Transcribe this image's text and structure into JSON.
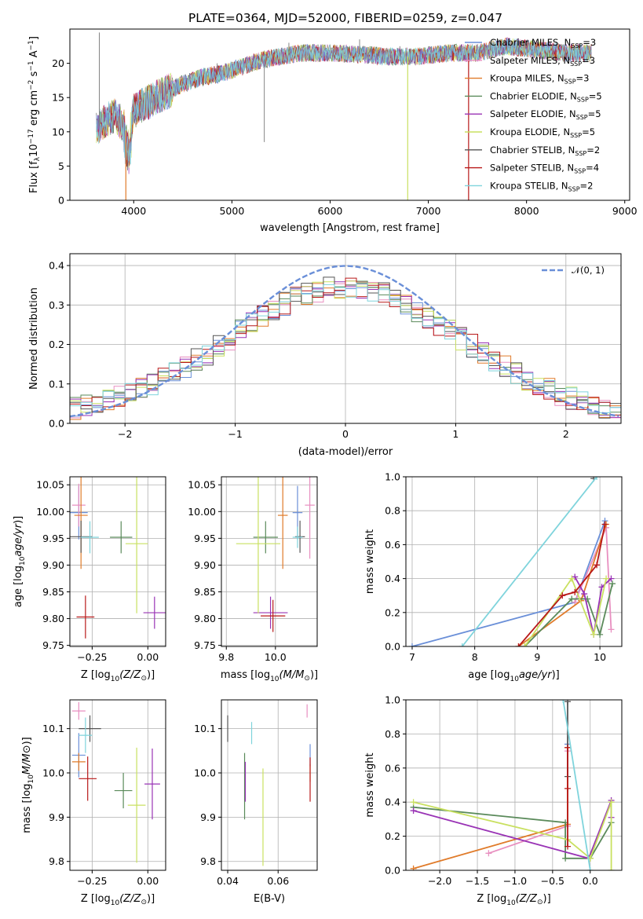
{
  "figure_title": "PLATE=0364, MJD=52000, FIBERID=0259, z=0.047",
  "series_colors": [
    "#6a8fd8",
    "#e88fc0",
    "#e07b2a",
    "#5a8a5a",
    "#9933b5",
    "#c9e060",
    "#555555",
    "#b81818",
    "#7fd4dc"
  ],
  "legend_notation": {
    "main_text_pre": "N",
    "subscript": "SSP"
  },
  "legend_entries": [
    {
      "label": "Chabrier MILES, N",
      "n": "=3",
      "color": "#6a8fd8"
    },
    {
      "label": "Salpeter MILES, N",
      "n": "=3",
      "color": "#e88fc0"
    },
    {
      "label": "Kroupa MILES, N",
      "n": "=3",
      "color": "#e07b2a"
    },
    {
      "label": "Chabrier ELODIE, N",
      "n": "=5",
      "color": "#5a8a5a"
    },
    {
      "label": "Salpeter ELODIE, N",
      "n": "=5",
      "color": "#9933b5"
    },
    {
      "label": "Kroupa ELODIE, N",
      "n": "=5",
      "color": "#c9e060"
    },
    {
      "label": "Chabrier STELIB, N",
      "n": "=2",
      "color": "#555555"
    },
    {
      "label": "Salpeter STELIB, N",
      "n": "=4",
      "color": "#b81818"
    },
    {
      "label": "Kroupa STELIB, N",
      "n": "=2",
      "color": "#7fd4dc"
    }
  ],
  "gauss_legend": "𝒩(0, 1)",
  "chart_data": [
    {
      "id": "spectrum",
      "type": "line",
      "xlabel": "wavelength [Angstrom, rest frame]",
      "ylabel_parts": [
        "Flux [f",
        "λ",
        "10",
        "−17",
        " erg cm",
        "−2",
        " s",
        "−1",
        " A",
        "−1",
        "]"
      ],
      "xlim": [
        3350,
        9050
      ],
      "ylim": [
        0,
        25
      ],
      "xticks": [
        4000,
        5000,
        6000,
        7000,
        8000,
        9000
      ],
      "yticks": [
        0,
        5,
        10,
        15,
        20
      ],
      "continuum": [
        [
          3620,
          10.5
        ],
        [
          3700,
          11.5
        ],
        [
          3800,
          12.5
        ],
        [
          3900,
          11
        ],
        [
          3950,
          9
        ],
        [
          4000,
          13
        ],
        [
          4100,
          14
        ],
        [
          4300,
          15.5
        ],
        [
          4500,
          17
        ],
        [
          4700,
          18
        ],
        [
          4900,
          18.5
        ],
        [
          5100,
          19.5
        ],
        [
          5300,
          20.5
        ],
        [
          5500,
          21
        ],
        [
          5700,
          21.5
        ],
        [
          6000,
          21.5
        ],
        [
          6300,
          21.3
        ],
        [
          6600,
          21
        ],
        [
          6900,
          21
        ],
        [
          7200,
          21.5
        ],
        [
          7500,
          21.5
        ],
        [
          7800,
          22.5
        ],
        [
          8100,
          22
        ],
        [
          8400,
          21.5
        ],
        [
          8650,
          21.5
        ]
      ],
      "spikes": [
        [
          3650,
          24.5
        ],
        [
          4850,
          20
        ],
        [
          5330,
          8.5
        ],
        [
          5580,
          23
        ],
        [
          6300,
          23.5
        ],
        [
          6710,
          22.5
        ],
        [
          7630,
          23
        ],
        [
          7920,
          21
        ],
        [
          8390,
          20.5
        ]
      ],
      "dips": [
        [
          3920,
          0,
          "#e07b2a"
        ],
        [
          6790,
          0,
          "#c9e060"
        ],
        [
          7410,
          0,
          "#b81818"
        ]
      ]
    },
    {
      "id": "residuals",
      "type": "line",
      "xlabel": "(data-model)/error",
      "ylabel": "Normed distribution",
      "xlim": [
        -2.5,
        2.5
      ],
      "ylim": [
        0,
        0.43
      ],
      "xticks": [
        -2,
        -1,
        0,
        1,
        2
      ],
      "yticks": [
        0.0,
        0.1,
        0.2,
        0.3,
        0.4
      ],
      "xtick_labels": [
        "−2",
        "−1",
        "0",
        "1",
        "2"
      ],
      "ytick_labels": [
        "0.0",
        "0.1",
        "0.2",
        "0.3",
        "0.4"
      ]
    },
    {
      "id": "age_vs_Z",
      "type": "scatter",
      "xlabel_pre": "Z [log",
      "xlabel_post": "(Z/Z",
      "ylabel": "age  [log",
      "xlim": [
        -0.35,
        0.08
      ],
      "ylim": [
        9.748,
        10.065
      ],
      "xticks": [
        -0.25,
        0.0
      ],
      "yticks": [
        9.75,
        9.8,
        9.85,
        9.9,
        9.95,
        10.0,
        10.05
      ],
      "xtick_labels": [
        "−0.25",
        "0.00"
      ],
      "ytick_labels": [
        "9.75",
        "9.80",
        "9.85",
        "9.90",
        "9.95",
        "10.00",
        "10.05"
      ],
      "points": [
        {
          "x": -0.31,
          "y": 9.998,
          "xe": 0.04,
          "ye": 0.05,
          "c": "#6a8fd8"
        },
        {
          "x": -0.31,
          "y": 10.012,
          "xe": 0.03,
          "ye": 0.04,
          "c": "#e88fc0"
        },
        {
          "x": -0.3,
          "y": 9.993,
          "xe": 0.03,
          "ye": 0.1,
          "c": "#e07b2a"
        },
        {
          "x": -0.12,
          "y": 9.952,
          "xe": 0.05,
          "ye": 0.03,
          "c": "#5a8a5a"
        },
        {
          "x": 0.03,
          "y": 9.811,
          "xe": 0.05,
          "ye": 0.03,
          "c": "#9933b5"
        },
        {
          "x": -0.05,
          "y": 9.94,
          "xe": 0.05,
          "ye": 0.13,
          "c": "#c9e060"
        },
        {
          "x": -0.3,
          "y": 9.953,
          "xe": 0.05,
          "ye": 0.03,
          "c": "#555555"
        },
        {
          "x": -0.28,
          "y": 9.803,
          "xe": 0.04,
          "ye": 0.04,
          "c": "#b81818"
        },
        {
          "x": -0.26,
          "y": 9.952,
          "xe": 0.04,
          "ye": 0.03,
          "c": "#7fd4dc"
        }
      ]
    },
    {
      "id": "age_vs_mass",
      "type": "scatter",
      "xlabel_pre": "mass [log",
      "xlabel_post": "(M/M",
      "ylabel": "",
      "xlim": [
        9.78,
        10.17
      ],
      "ylim": [
        9.748,
        10.065
      ],
      "xticks": [
        9.8,
        10.0
      ],
      "yticks": [
        9.75,
        9.8,
        9.85,
        9.9,
        9.95,
        10.0,
        10.05
      ],
      "xtick_labels": [
        "9.8",
        "10.0"
      ],
      "ytick_labels": [
        "9.75",
        "9.80",
        "9.85",
        "9.90",
        "9.95",
        "10.00",
        "10.05"
      ],
      "points": [
        {
          "x": 10.09,
          "y": 9.998,
          "xe": 0.02,
          "ye": 0.05,
          "c": "#6a8fd8"
        },
        {
          "x": 10.14,
          "y": 10.012,
          "xe": 0.02,
          "ye": 0.1,
          "c": "#e88fc0"
        },
        {
          "x": 10.03,
          "y": 9.993,
          "xe": 0.02,
          "ye": 0.1,
          "c": "#e07b2a"
        },
        {
          "x": 9.96,
          "y": 9.952,
          "xe": 0.05,
          "ye": 0.03,
          "c": "#5a8a5a"
        },
        {
          "x": 9.98,
          "y": 9.811,
          "xe": 0.07,
          "ye": 0.03,
          "c": "#9933b5"
        },
        {
          "x": 9.93,
          "y": 9.94,
          "xe": 0.09,
          "ye": 0.13,
          "c": "#c9e060"
        },
        {
          "x": 10.1,
          "y": 9.953,
          "xe": 0.02,
          "ye": 0.03,
          "c": "#555555"
        },
        {
          "x": 9.99,
          "y": 9.805,
          "xe": 0.05,
          "ye": 0.03,
          "c": "#b81818"
        },
        {
          "x": 10.09,
          "y": 9.952,
          "xe": 0.02,
          "ye": 0.02,
          "c": "#7fd4dc"
        }
      ]
    },
    {
      "id": "mass_weight_vs_age",
      "type": "line",
      "xlabel": "age  [log",
      "ylabel": "mass weight",
      "xlim": [
        6.9,
        10.35
      ],
      "ylim": [
        0,
        1.0
      ],
      "xticks": [
        7,
        8,
        9,
        10
      ],
      "yticks": [
        0.0,
        0.2,
        0.4,
        0.6,
        0.8,
        1.0
      ],
      "xtick_labels": [
        "7",
        "8",
        "9",
        "10"
      ],
      "ytick_labels": [
        "0.0",
        "0.2",
        "0.4",
        "0.6",
        "0.8",
        "1.0"
      ],
      "series": [
        {
          "c": "#6a8fd8",
          "pts": [
            [
              7.0,
              0.0
            ],
            [
              9.6,
              0.26
            ],
            [
              10.08,
              0.74
            ]
          ]
        },
        {
          "c": "#e88fc0",
          "pts": [
            [
              9.6,
              0.26
            ],
            [
              10.1,
              0.7
            ],
            [
              10.18,
              0.1
            ]
          ]
        },
        {
          "c": "#e07b2a",
          "pts": [
            [
              8.7,
              0.0
            ],
            [
              9.7,
              0.27
            ],
            [
              10.1,
              0.72
            ]
          ]
        },
        {
          "c": "#5a8a5a",
          "pts": [
            [
              8.8,
              0.0
            ],
            [
              9.55,
              0.28
            ],
            [
              9.8,
              0.28
            ],
            [
              10.0,
              0.07
            ],
            [
              10.2,
              0.37
            ]
          ]
        },
        {
          "c": "#9933b5",
          "pts": [
            [
              9.6,
              0.41
            ],
            [
              9.75,
              0.31
            ],
            [
              9.9,
              0.07
            ],
            [
              10.03,
              0.35
            ],
            [
              10.18,
              0.4
            ]
          ]
        },
        {
          "c": "#c9e060",
          "pts": [
            [
              8.8,
              0.0
            ],
            [
              9.55,
              0.4
            ],
            [
              9.9,
              0.07
            ],
            [
              10.1,
              0.4
            ]
          ]
        },
        {
          "c": "#555555",
          "pts": [
            [
              9.9,
              0.99
            ]
          ]
        },
        {
          "c": "#b81818",
          "pts": [
            [
              8.7,
              0.0
            ],
            [
              9.4,
              0.3
            ],
            [
              9.6,
              0.32
            ],
            [
              9.95,
              0.48
            ],
            [
              10.08,
              0.72
            ]
          ]
        },
        {
          "c": "#7fd4dc",
          "pts": [
            [
              7.8,
              0.0
            ],
            [
              9.95,
              1.0
            ]
          ]
        }
      ]
    },
    {
      "id": "mass_vs_Z",
      "type": "scatter",
      "xlabel_pre": "Z [log",
      "xlabel_post": "(Z/Z",
      "ylabel": "mass [log",
      "xlim": [
        -0.35,
        0.08
      ],
      "ylim": [
        9.78,
        10.165
      ],
      "xticks": [
        -0.25,
        0.0
      ],
      "yticks": [
        9.8,
        9.9,
        10.0,
        10.1
      ],
      "xtick_labels": [
        "−0.25",
        "0.00"
      ],
      "ytick_labels": [
        "9.8",
        "9.9",
        "10.0",
        "10.1"
      ],
      "points": [
        {
          "x": -0.31,
          "y": 10.04,
          "xe": 0.03,
          "ye": 0.05,
          "c": "#6a8fd8"
        },
        {
          "x": -0.31,
          "y": 10.14,
          "xe": 0.03,
          "ye": 0.02,
          "c": "#e88fc0"
        },
        {
          "x": -0.31,
          "y": 10.025,
          "xe": 0.03,
          "ye": 0.02,
          "c": "#e07b2a"
        },
        {
          "x": -0.11,
          "y": 9.96,
          "xe": 0.04,
          "ye": 0.04,
          "c": "#5a8a5a"
        },
        {
          "x": 0.02,
          "y": 9.975,
          "xe": 0.035,
          "ye": 0.08,
          "c": "#9933b5"
        },
        {
          "x": -0.05,
          "y": 9.927,
          "xe": 0.04,
          "ye": 0.13,
          "c": "#c9e060"
        },
        {
          "x": -0.26,
          "y": 10.1,
          "xe": 0.05,
          "ye": 0.03,
          "c": "#555555"
        },
        {
          "x": -0.27,
          "y": 9.987,
          "xe": 0.04,
          "ye": 0.05,
          "c": "#b81818"
        },
        {
          "x": -0.28,
          "y": 10.085,
          "xe": 0.03,
          "ye": 0.04,
          "c": "#7fd4dc"
        }
      ]
    },
    {
      "id": "mass_vs_EBV",
      "type": "scatter",
      "xlabel": "E(B-V)",
      "ylabel": "",
      "xlim": [
        0.0375,
        0.0755
      ],
      "ylim": [
        9.78,
        10.165
      ],
      "xticks": [
        0.04,
        0.06
      ],
      "yticks": [
        9.8,
        9.9,
        10.0,
        10.1
      ],
      "xtick_labels": [
        "0.04",
        "0.06"
      ],
      "ytick_labels": [
        "9.8",
        "9.9",
        "10.0",
        "10.1"
      ],
      "points": [
        {
          "x": 0.0727,
          "y": 10.04,
          "xe": 0,
          "ye": 0.025,
          "c": "#6a8fd8"
        },
        {
          "x": 0.0715,
          "y": 10.14,
          "xe": 0,
          "ye": 0.015,
          "c": "#e88fc0"
        },
        {
          "x": 0.0727,
          "y": 10.0,
          "xe": 0,
          "ye": 0.02,
          "c": "#e07b2a"
        },
        {
          "x": 0.0467,
          "y": 9.97,
          "xe": 0,
          "ye": 0.075,
          "c": "#5a8a5a"
        },
        {
          "x": 0.047,
          "y": 9.98,
          "xe": 0,
          "ye": 0.045,
          "c": "#9933b5"
        },
        {
          "x": 0.054,
          "y": 9.9,
          "xe": 0,
          "ye": 0.11,
          "c": "#c9e060"
        },
        {
          "x": 0.04,
          "y": 10.1,
          "xe": 0,
          "ye": 0.03,
          "c": "#555555"
        },
        {
          "x": 0.0727,
          "y": 9.985,
          "xe": 0,
          "ye": 0.05,
          "c": "#b81818"
        },
        {
          "x": 0.0495,
          "y": 10.09,
          "xe": 0,
          "ye": 0.025,
          "c": "#7fd4dc"
        }
      ]
    },
    {
      "id": "mass_weight_vs_Z",
      "type": "line",
      "xlabel_pre": "Z [log",
      "xlabel_post": "(Z/Z",
      "ylabel": "mass weight",
      "xlim": [
        -2.45,
        0.42
      ],
      "ylim": [
        0,
        1.0
      ],
      "xticks": [
        -2.0,
        -1.5,
        -1.0,
        -0.5,
        0.0
      ],
      "yticks": [
        0.0,
        0.2,
        0.4,
        0.6,
        0.8,
        1.0
      ],
      "xtick_labels": [
        "−2.0",
        "−1.5",
        "−1.0",
        "−0.5",
        "0.0"
      ],
      "ytick_labels": [
        "0.0",
        "0.2",
        "0.4",
        "0.6",
        "0.8",
        "1.0"
      ],
      "series": [
        {
          "c": "#6a8fd8",
          "pts": [
            [
              -0.3,
              0.74
            ],
            [
              -0.3,
              0.26
            ]
          ]
        },
        {
          "c": "#e88fc0",
          "pts": [
            [
              -1.35,
              0.1
            ],
            [
              -0.3,
              0.26
            ],
            [
              -0.3,
              0.7
            ]
          ]
        },
        {
          "c": "#e07b2a",
          "pts": [
            [
              -2.35,
              0.01
            ],
            [
              -0.3,
              0.27
            ],
            [
              -0.3,
              0.72
            ]
          ]
        },
        {
          "c": "#5a8a5a",
          "pts": [
            [
              -2.35,
              0.37
            ],
            [
              -0.33,
              0.28
            ],
            [
              -0.33,
              0.07
            ],
            [
              0.0,
              0.07
            ],
            [
              0.28,
              0.28
            ]
          ]
        },
        {
          "c": "#9933b5",
          "pts": [
            [
              -2.35,
              0.35
            ],
            [
              -0.02,
              0.07
            ],
            [
              0.28,
              0.41
            ],
            [
              0.28,
              0.31
            ]
          ]
        },
        {
          "c": "#c9e060",
          "pts": [
            [
              -2.35,
              0.4
            ],
            [
              -0.3,
              0.18
            ],
            [
              0.0,
              0.07
            ],
            [
              0.28,
              0.4
            ],
            [
              0.28,
              0.0
            ]
          ]
        },
        {
          "c": "#555555",
          "pts": [
            [
              -0.3,
              0.55
            ],
            [
              -0.3,
              0.99
            ]
          ]
        },
        {
          "c": "#b81818",
          "pts": [
            [
              -0.3,
              0.72
            ],
            [
              -0.3,
              0.14
            ],
            [
              -0.3,
              0.48
            ]
          ]
        },
        {
          "c": "#7fd4dc",
          "pts": [
            [
              -0.36,
              1.0
            ],
            [
              0.0,
              0.0
            ]
          ]
        }
      ]
    }
  ]
}
